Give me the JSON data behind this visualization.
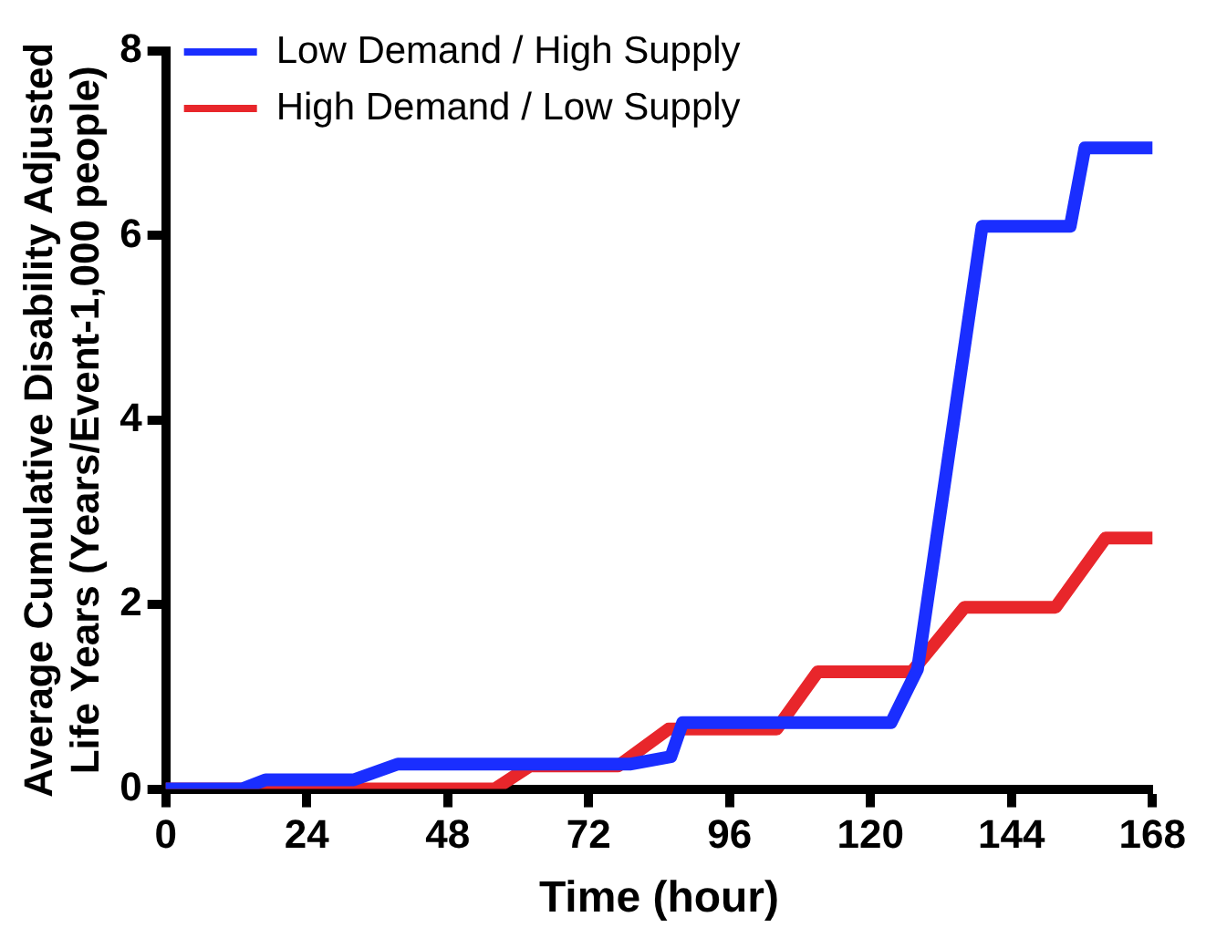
{
  "chart_data": {
    "type": "line",
    "xlabel": "Time (hour)",
    "ylabel": "Average Cumulative Disability Adjusted\nLife Years (Years/Event-1,000 people)",
    "xlim": [
      0,
      168
    ],
    "xticks": [
      0,
      24,
      48,
      72,
      96,
      120,
      144,
      168
    ],
    "ylim": [
      0,
      8
    ],
    "yticks": [
      0,
      2,
      4,
      6,
      8
    ],
    "grid": false,
    "legend": "top left",
    "line_style": "solid",
    "series": [
      {
        "name": "Low Demand / High Supply",
        "color": "#1a2eff",
        "x": [
          0,
          13,
          17,
          32,
          39.5,
          79,
          86,
          88,
          123.5,
          128,
          139,
          154,
          156.5,
          168
        ],
        "values": [
          0,
          0,
          0.1,
          0.1,
          0.27,
          0.27,
          0.35,
          0.72,
          0.72,
          1.3,
          6.1,
          6.1,
          6.95,
          6.95
        ]
      },
      {
        "name": "High Demand / Low Supply",
        "color": "#e8262b",
        "x": [
          0,
          56,
          62,
          77,
          85.6,
          104,
          111,
          127,
          136,
          151.5,
          160,
          168
        ],
        "values": [
          0,
          0,
          0.25,
          0.25,
          0.65,
          0.65,
          1.27,
          1.27,
          1.97,
          1.97,
          2.72,
          2.72
        ]
      }
    ]
  }
}
